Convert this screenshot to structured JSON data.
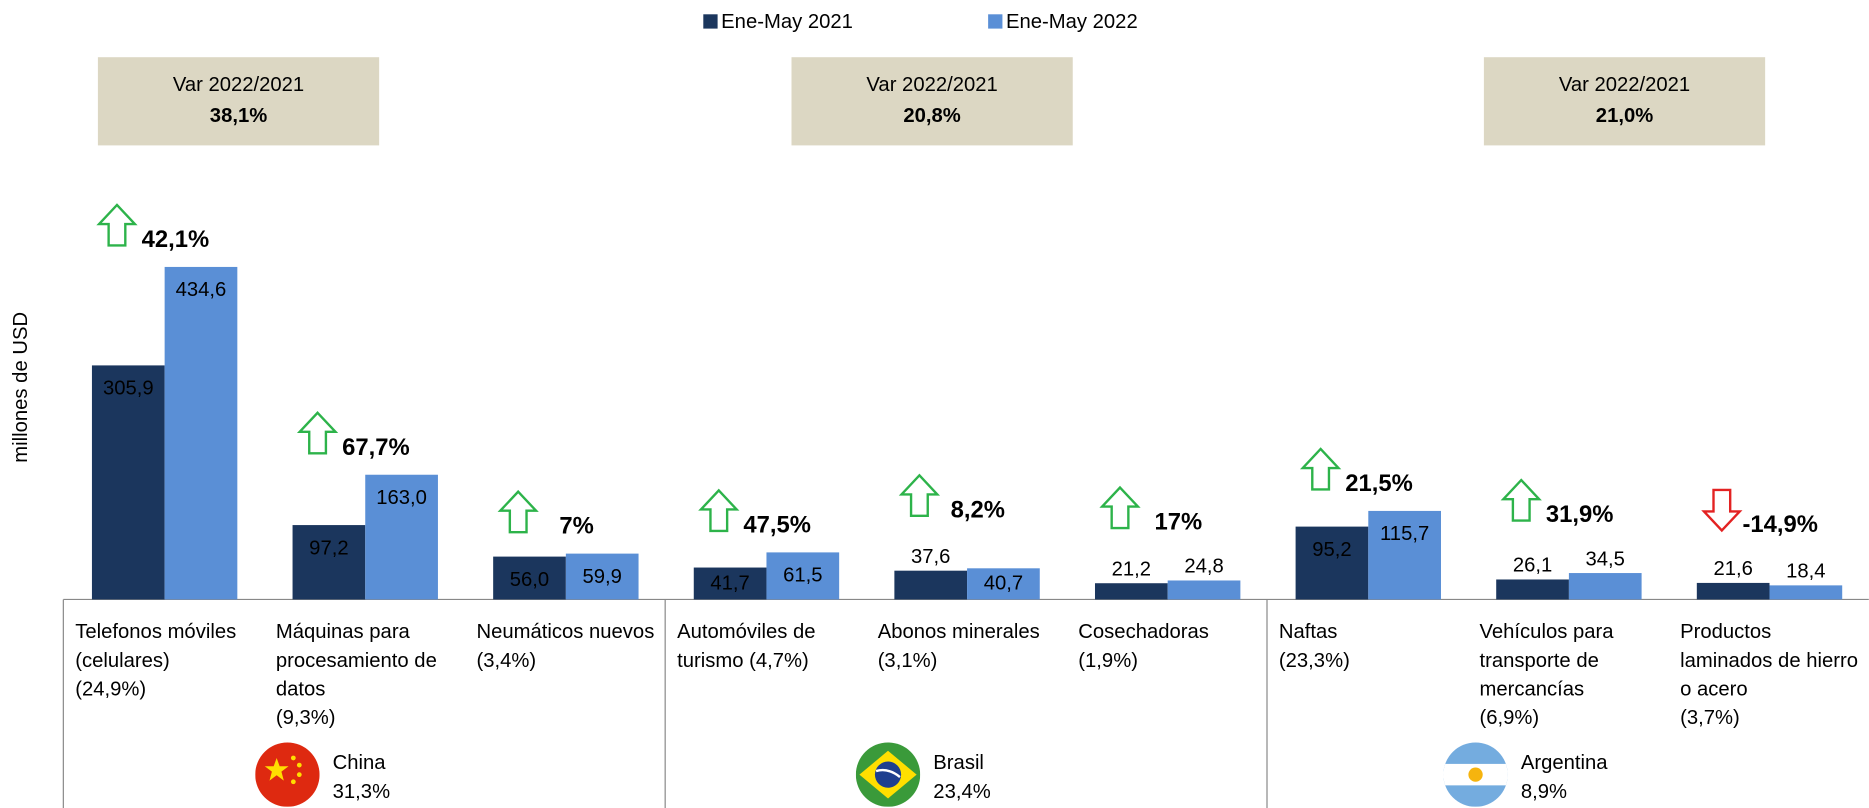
{
  "chart_data": {
    "type": "bar",
    "y_label": "millones de USD",
    "ylim": [
      0,
      500
    ],
    "categories": [
      [
        "Telefonos móviles",
        "(celulares)",
        "(24,9%)"
      ],
      [
        "Máquinas para",
        "procesamiento de",
        "datos",
        "(9,3%)"
      ],
      [
        "Neumáticos nuevos",
        "(3,4%)"
      ],
      [
        "Automóviles de",
        "turismo (4,7%)"
      ],
      [
        "Abonos minerales",
        "(3,1%)"
      ],
      [
        "Cosechadoras",
        "(1,9%)"
      ],
      [
        "Naftas",
        "(23,3%)"
      ],
      [
        "Vehículos para",
        "transporte de",
        "mercancías",
        "(6,9%)"
      ],
      [
        "Productos",
        "laminados de hierro",
        "o acero",
        "(3,7%)"
      ]
    ],
    "series": [
      {
        "name": "Ene-May 2021",
        "color": "#1b365d",
        "values": [
          305.9,
          97.2,
          56.0,
          41.7,
          37.6,
          21.2,
          95.2,
          26.1,
          21.6
        ],
        "value_labels": [
          "305,9",
          "97,2",
          "56,0",
          "41,7",
          "37,6",
          "21,2",
          "95,2",
          "26,1",
          "21,6"
        ]
      },
      {
        "name": "Ene-May 2022",
        "color": "#5a8fd6",
        "values": [
          434.6,
          163.0,
          59.9,
          61.5,
          40.7,
          24.8,
          115.7,
          34.5,
          18.4
        ],
        "value_labels": [
          "434,6",
          "163,0",
          "59,9",
          "61,5",
          "40,7",
          "24,8",
          "115,7",
          "34,5",
          "18,4"
        ]
      }
    ],
    "change": {
      "values": [
        42.1,
        67.7,
        7,
        47.5,
        8.2,
        17,
        21.5,
        31.9,
        -14.9
      ],
      "value_labels": [
        "42,1%",
        "67,7%",
        "7%",
        "47,5%",
        "8,2%",
        "17%",
        "21,5%",
        "31,9%",
        "-14,9%"
      ]
    },
    "groups": [
      {
        "name": "China",
        "share": {
          "value": 31.3,
          "label": "31,3%"
        },
        "var_title": "Var 2022/2021",
        "var": {
          "value": 38.1,
          "label": "38,1%"
        }
      },
      {
        "name": "Brasil",
        "share": {
          "value": 23.4,
          "label": "23,4%"
        },
        "var_title": "Var 2022/2021",
        "var": {
          "value": 20.8,
          "label": "20,8%"
        }
      },
      {
        "name": "Argentina",
        "share": {
          "value": 8.9,
          "label": "8,9%"
        },
        "var_title": "Var 2022/2021",
        "var": {
          "value": 21.0,
          "label": "21,0%"
        }
      }
    ]
  }
}
